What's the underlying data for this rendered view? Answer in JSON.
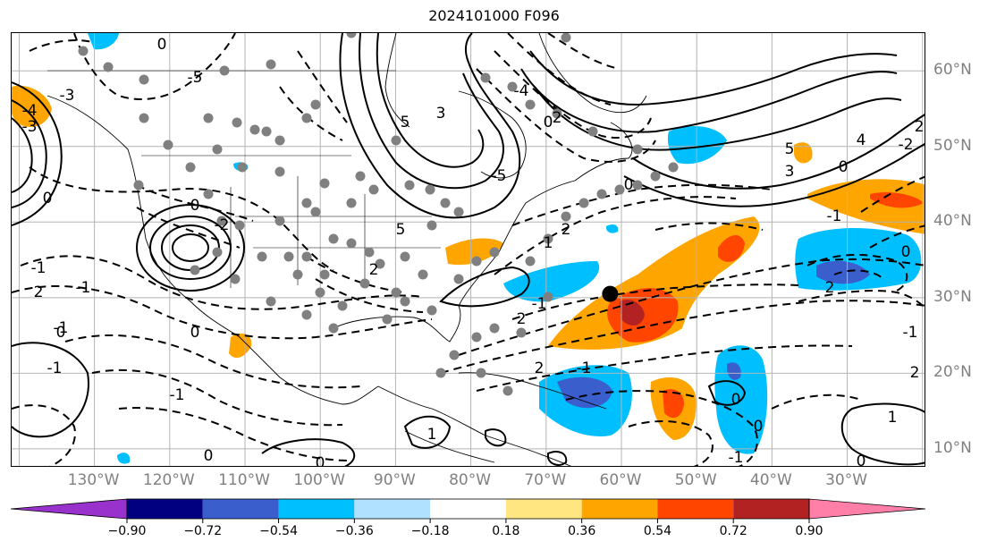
{
  "title": "2024101000 F096",
  "longitude_labels": [
    "130°W",
    "120°W",
    "110°W",
    "100°W",
    "90°W",
    "80°W",
    "70°W",
    "60°W",
    "50°W",
    "40°W",
    "30°W"
  ],
  "latitude_labels": [
    "60°N",
    "50°N",
    "40°N",
    "30°N",
    "20°N",
    "10°N"
  ],
  "colorbar": {
    "colors": [
      "#9932cc",
      "#000080",
      "#3a5fcd",
      "#00bfff",
      "#b0e2ff",
      "#ffffff",
      "#ffe680",
      "#ffa500",
      "#ff4500",
      "#b22222",
      "#ff7fa8"
    ],
    "tick_labels": [
      "−0.90",
      "−0.72",
      "−0.54",
      "−0.36",
      "−0.18",
      "0.18",
      "0.36",
      "0.54",
      "0.72",
      "0.90"
    ],
    "extend": "both"
  },
  "contour_labels": [
    "0",
    "-5",
    "5",
    "-3",
    "-4",
    "3",
    "-1",
    "-2",
    "1",
    "2",
    "4"
  ],
  "storm_marker": {
    "lon": -61.5,
    "lat": 30.5,
    "color": "#000000"
  },
  "station_color": "#808080",
  "grid": true
}
